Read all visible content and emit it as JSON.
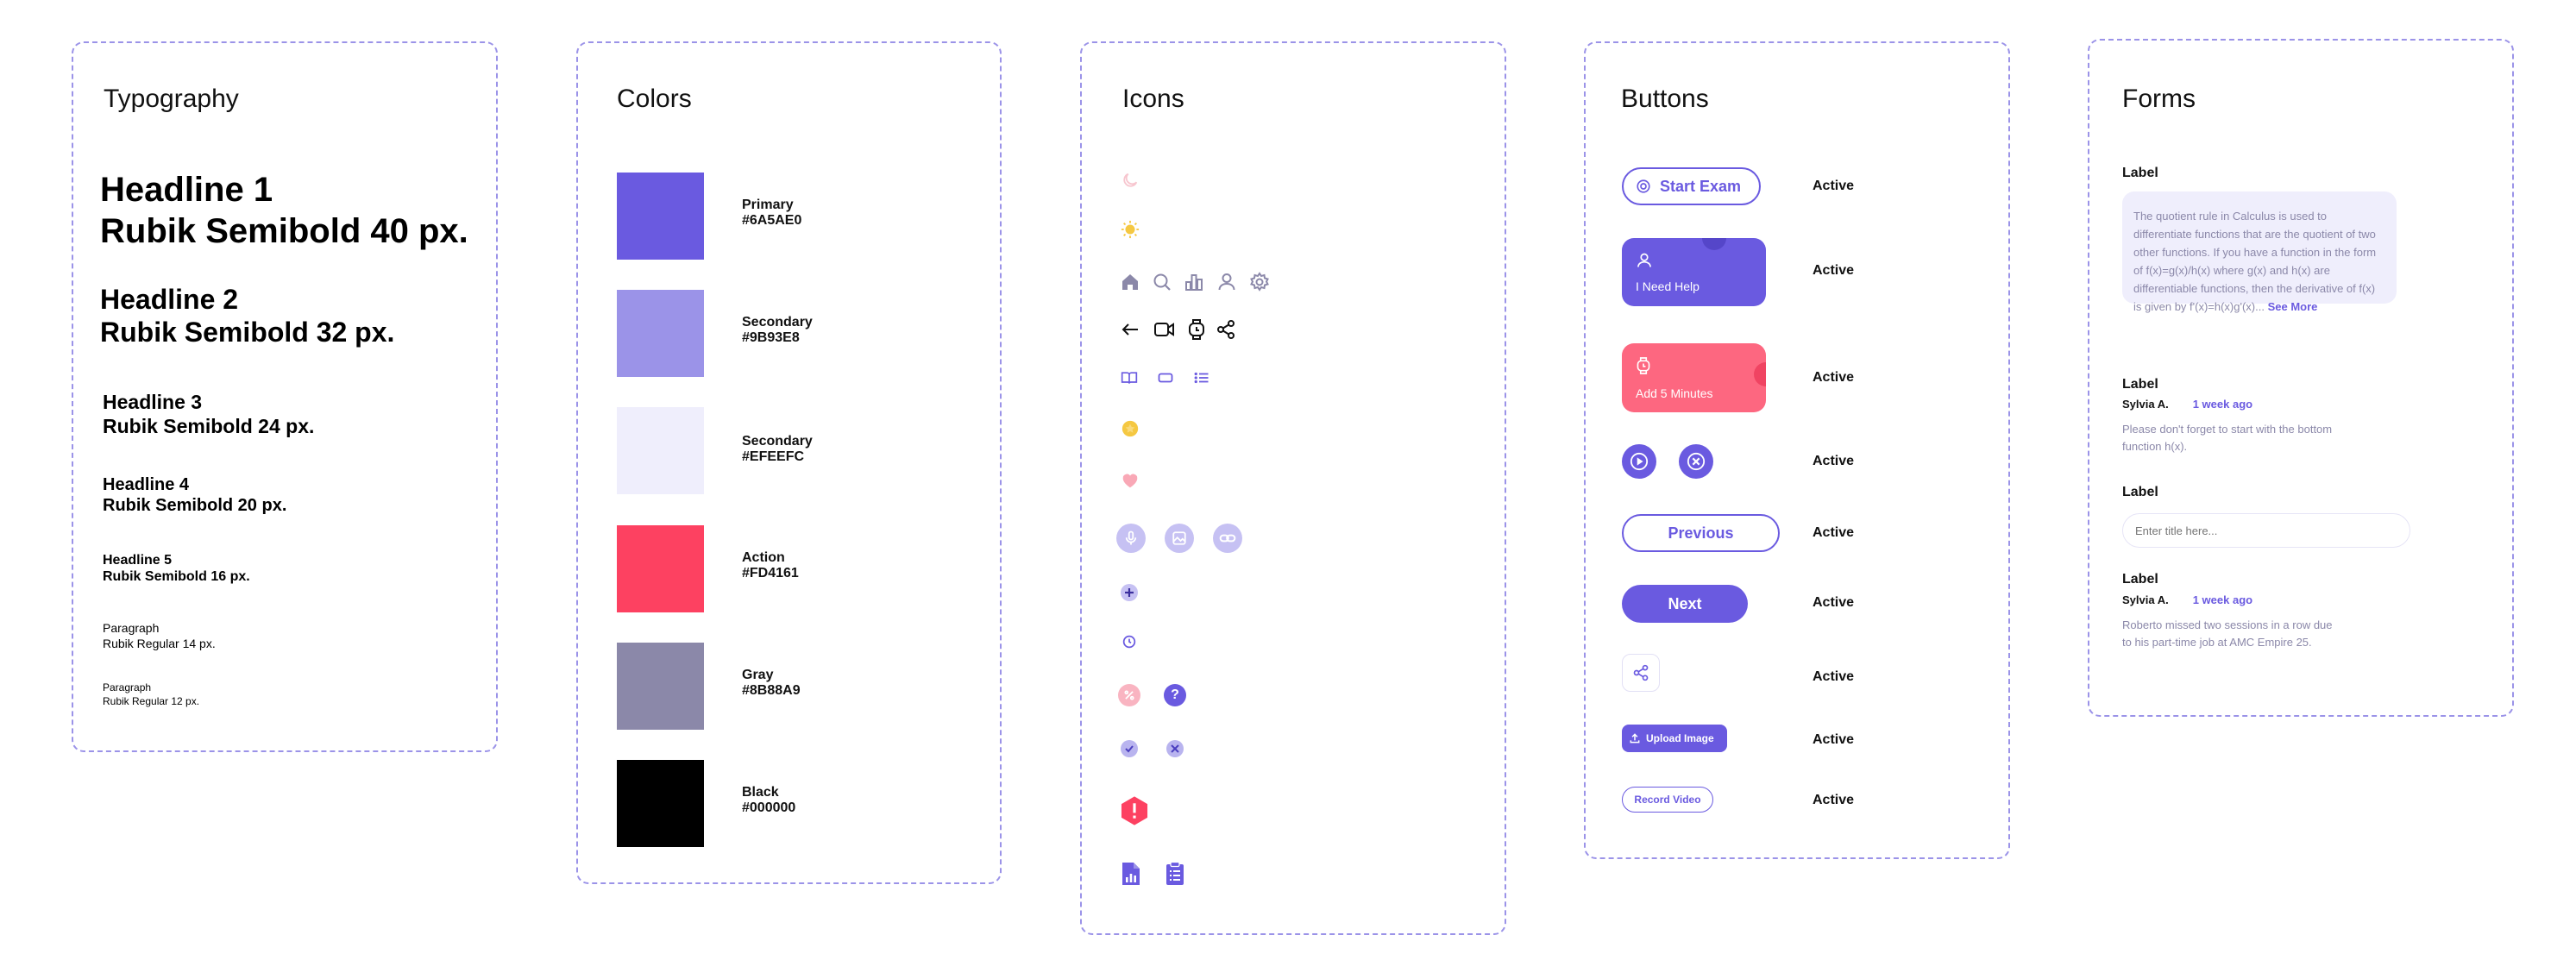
{
  "typography": {
    "title": "Typography",
    "h1": {
      "name": "Headline 1",
      "spec": "Rubik Semibold 40 px."
    },
    "h2": {
      "name": "Headline 2",
      "spec": "Rubik Semibold 32 px."
    },
    "h3": {
      "name": "Headline 3",
      "spec": "Rubik Semibold 24 px."
    },
    "h4": {
      "name": "Headline 4",
      "spec": "Rubik Semibold 20 px."
    },
    "h5": {
      "name": "Headline 5",
      "spec": "Rubik Semibold 16 px."
    },
    "p14": {
      "name": "Paragraph",
      "spec": "Rubik Regular 14 px."
    },
    "p12": {
      "name": "Paragraph",
      "spec": "Rubik Regular 12 px."
    }
  },
  "colors": {
    "title": "Colors",
    "swatches": [
      {
        "name": "Primary",
        "hex": "#6A5AE0"
      },
      {
        "name": "Secondary",
        "hex": "#9B93E8"
      },
      {
        "name": "Secondary",
        "hex": "#EFEEFC"
      },
      {
        "name": "Action",
        "hex": "#FD4161"
      },
      {
        "name": "Gray",
        "hex": "#8B88A9"
      },
      {
        "name": "Black",
        "hex": "#000000"
      }
    ]
  },
  "icons": {
    "title": "Icons",
    "names": [
      "moon-icon",
      "sun-icon",
      "home-icon",
      "search-icon",
      "chart-icon",
      "user-icon",
      "settings-icon",
      "arrow-left-icon",
      "video-icon",
      "watch-icon",
      "share-icon",
      "book-icon",
      "card-icon",
      "list-icon",
      "coin-icon",
      "heart-icon",
      "microphone-icon",
      "image-icon",
      "link-icon",
      "plus-icon",
      "clock-icon",
      "percent-icon",
      "help-icon",
      "check-icon",
      "close-icon",
      "alert-icon",
      "report-icon",
      "clipboard-icon"
    ]
  },
  "buttons": {
    "title": "Buttons",
    "start_exam": "Start Exam",
    "need_help": "I Need Help",
    "add_minutes": "Add 5 Minutes",
    "previous": "Previous",
    "next": "Next",
    "upload_image": "Upload Image",
    "record_video": "Record Video",
    "state": "Active",
    "colors": {
      "primary": "#6A5AE0",
      "action": "#FD6780"
    }
  },
  "forms": {
    "title": "Forms",
    "label": "Label",
    "quote_text": "The quotient rule in Calculus is used to differentiate functions that are the quotient of two other functions. If you have a function in the form of f(x)=g(x)/h(x) where g(x) and h(x) are differentiable functions, then the derivative of f(x) is given by f'(x)=h(x)g'(x)...",
    "see_more": "See More",
    "comment1": {
      "author": "Sylvia A.",
      "time": "1 week ago",
      "text": "Please don't forget to start with the bottom function h(x)."
    },
    "input_placeholder": "Enter title here...",
    "comment2": {
      "author": "Sylvia A.",
      "time": "1 week ago",
      "text": "Roberto missed two sessions in a row due to his part-time job at AMC Empire 25."
    }
  }
}
